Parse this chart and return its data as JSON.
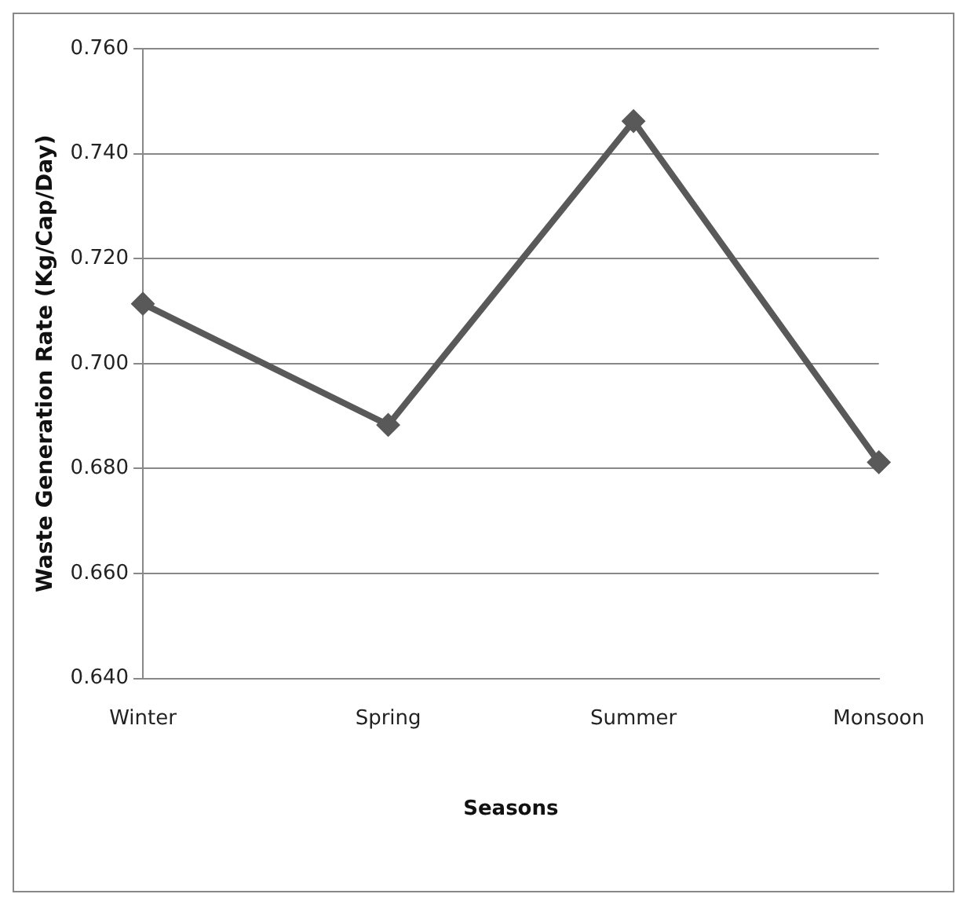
{
  "chart_data": {
    "type": "line",
    "xlabel": "Seasons",
    "ylabel": "Waste Generation Rate (Kg/Cap/Day)",
    "categories": [
      "Winter",
      "Spring",
      "Summer",
      "Monsoon"
    ],
    "series": [
      {
        "color": "#595959",
        "values": [
          0.7114,
          0.6883,
          0.7462,
          0.6812
        ]
      }
    ],
    "ylim": [
      0.64,
      0.76
    ],
    "yticks": [
      {
        "value": 0.64,
        "label": "0.640"
      },
      {
        "value": 0.66,
        "label": "0.660"
      },
      {
        "value": 0.68,
        "label": "0.680"
      },
      {
        "value": 0.7,
        "label": "0.700"
      },
      {
        "value": 0.72,
        "label": "0.720"
      },
      {
        "value": 0.74,
        "label": "0.740"
      },
      {
        "value": 0.76,
        "label": "0.760"
      }
    ],
    "grid": "y",
    "legend": false,
    "marker": "diamond",
    "line_style": "solid"
  }
}
